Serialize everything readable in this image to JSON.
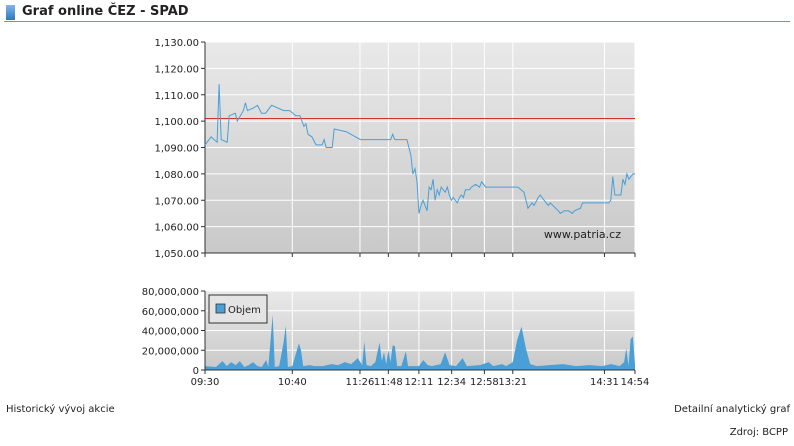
{
  "header": {
    "title": "Graf online ČEZ - SPAD"
  },
  "footer": {
    "history_link": "Historický vývoj akcie",
    "detail_link": "Detailní analytický graf",
    "source": "Zdroj: BCPP"
  },
  "colors": {
    "price_line": "#4a9fd6",
    "reference_line": "#d03030",
    "volume_fill": "#4a9fd6",
    "header_accent": "#2b78c2"
  },
  "chart_data": [
    {
      "type": "line",
      "watermark": "www.patria.cz",
      "y_ticks": [
        "1,050.00",
        "1,060.00",
        "1,070.00",
        "1,080.00",
        "1,090.00",
        "1,100.00",
        "1,110.00",
        "1,120.00",
        "1,130.00"
      ],
      "ylim": [
        1050,
        1130
      ],
      "reference_value": 1101,
      "grid": true,
      "points": [
        [
          0,
          1091
        ],
        [
          3,
          1094
        ],
        [
          6,
          1092
        ],
        [
          7,
          1114
        ],
        [
          8,
          1093
        ],
        [
          11,
          1092
        ],
        [
          12,
          1102
        ],
        [
          15,
          1103
        ],
        [
          16,
          1100
        ],
        [
          19,
          1104
        ],
        [
          20,
          1107
        ],
        [
          21,
          1104
        ],
        [
          24,
          1105
        ],
        [
          26,
          1106
        ],
        [
          28,
          1103
        ],
        [
          30,
          1103
        ],
        [
          33,
          1106
        ],
        [
          39,
          1104
        ],
        [
          42,
          1104
        ],
        [
          45,
          1102
        ],
        [
          47,
          1102
        ],
        [
          49,
          1098
        ],
        [
          50,
          1099
        ],
        [
          51,
          1095
        ],
        [
          53,
          1094
        ],
        [
          55,
          1091
        ],
        [
          58,
          1091
        ],
        [
          59,
          1093
        ],
        [
          60,
          1090
        ],
        [
          63,
          1090
        ],
        [
          64,
          1097
        ],
        [
          70,
          1096
        ],
        [
          77,
          1093
        ],
        [
          92,
          1093
        ],
        [
          93,
          1095
        ],
        [
          94,
          1093
        ],
        [
          100,
          1093
        ],
        [
          102,
          1087
        ],
        [
          103,
          1080
        ],
        [
          104,
          1082
        ],
        [
          105,
          1077
        ],
        [
          106,
          1065
        ],
        [
          107,
          1068
        ],
        [
          108,
          1070
        ],
        [
          110,
          1066
        ],
        [
          111,
          1075
        ],
        [
          112,
          1074
        ],
        [
          113,
          1078
        ],
        [
          114,
          1070
        ],
        [
          115,
          1074
        ],
        [
          116,
          1072
        ],
        [
          117,
          1075
        ],
        [
          119,
          1073
        ],
        [
          120,
          1075
        ],
        [
          121,
          1072
        ],
        [
          122,
          1070
        ],
        [
          123,
          1071
        ],
        [
          125,
          1069
        ],
        [
          126,
          1071
        ],
        [
          127,
          1072
        ],
        [
          128,
          1071
        ],
        [
          129,
          1074
        ],
        [
          131,
          1074
        ],
        [
          132,
          1075
        ],
        [
          134,
          1076
        ],
        [
          136,
          1075
        ],
        [
          137,
          1077
        ],
        [
          139,
          1075
        ],
        [
          155,
          1075
        ],
        [
          158,
          1073
        ],
        [
          159,
          1070
        ],
        [
          160,
          1067
        ],
        [
          162,
          1069
        ],
        [
          163,
          1068
        ],
        [
          165,
          1071
        ],
        [
          166,
          1072
        ],
        [
          169,
          1069
        ],
        [
          170,
          1068
        ],
        [
          171,
          1069
        ],
        [
          175,
          1066
        ],
        [
          176,
          1065
        ],
        [
          178,
          1066
        ],
        [
          180,
          1066
        ],
        [
          182,
          1065
        ],
        [
          183,
          1066
        ],
        [
          186,
          1067
        ],
        [
          187,
          1069
        ],
        [
          200,
          1069
        ],
        [
          201,
          1070
        ],
        [
          202,
          1079
        ],
        [
          203,
          1072
        ],
        [
          206,
          1072
        ],
        [
          207,
          1078
        ],
        [
          208,
          1076
        ],
        [
          209,
          1080
        ],
        [
          210,
          1078
        ],
        [
          212,
          1080
        ],
        [
          213,
          1080
        ]
      ]
    },
    {
      "type": "area",
      "legend": {
        "label": "Objem",
        "position": "top-left"
      },
      "y_ticks": [
        "0",
        "20,000,000",
        "40,000,000",
        "60,000,000",
        "80,000,000"
      ],
      "ylim": [
        0,
        80000000
      ],
      "grid": true,
      "x_tick_labels": [
        {
          "t": 0,
          "label": "09:30"
        },
        {
          "t": 40,
          "label": "10:40"
        },
        {
          "t": 71,
          "label": "11:26"
        },
        {
          "t": 84,
          "label": "11:48"
        },
        {
          "t": 98,
          "label": "12:11"
        },
        {
          "t": 113,
          "label": "12:34"
        },
        {
          "t": 128,
          "label": "12:58"
        },
        {
          "t": 141,
          "label": "13:21"
        },
        {
          "t": 183,
          "label": "14:31"
        },
        {
          "t": 197,
          "label": "14:54"
        }
      ],
      "points": [
        [
          0,
          4000000
        ],
        [
          5,
          3000000
        ],
        [
          8,
          9000000
        ],
        [
          10,
          4000000
        ],
        [
          12,
          8000000
        ],
        [
          14,
          5000000
        ],
        [
          16,
          9000000
        ],
        [
          18,
          3000000
        ],
        [
          20,
          5000000
        ],
        [
          22,
          8000000
        ],
        [
          24,
          4000000
        ],
        [
          26,
          3000000
        ],
        [
          28,
          10000000
        ],
        [
          29,
          3000000
        ],
        [
          31,
          56000000
        ],
        [
          32,
          3000000
        ],
        [
          34,
          4000000
        ],
        [
          36,
          28000000
        ],
        [
          37,
          45000000
        ],
        [
          38,
          3000000
        ],
        [
          40,
          4000000
        ],
        [
          43,
          27000000
        ],
        [
          44,
          20000000
        ],
        [
          45,
          4000000
        ],
        [
          48,
          5000000
        ],
        [
          50,
          4000000
        ],
        [
          54,
          4000000
        ],
        [
          58,
          6000000
        ],
        [
          61,
          5000000
        ],
        [
          64,
          8000000
        ],
        [
          67,
          6000000
        ],
        [
          70,
          12000000
        ],
        [
          72,
          5000000
        ],
        [
          73,
          29000000
        ],
        [
          74,
          5000000
        ],
        [
          76,
          4000000
        ],
        [
          78,
          8000000
        ],
        [
          80,
          28000000
        ],
        [
          81,
          9000000
        ],
        [
          82,
          18000000
        ],
        [
          83,
          6000000
        ],
        [
          84,
          20000000
        ],
        [
          85,
          8000000
        ],
        [
          86,
          25000000
        ],
        [
          87,
          24000000
        ],
        [
          88,
          4000000
        ],
        [
          90,
          4000000
        ],
        [
          92,
          19000000
        ],
        [
          93,
          4000000
        ],
        [
          95,
          4000000
        ],
        [
          98,
          4000000
        ],
        [
          100,
          10000000
        ],
        [
          102,
          5000000
        ],
        [
          104,
          4000000
        ],
        [
          108,
          6000000
        ],
        [
          110,
          18000000
        ],
        [
          112,
          5000000
        ],
        [
          115,
          4000000
        ],
        [
          118,
          12000000
        ],
        [
          120,
          4000000
        ],
        [
          126,
          5000000
        ],
        [
          130,
          8000000
        ],
        [
          132,
          4000000
        ],
        [
          136,
          6000000
        ],
        [
          138,
          4000000
        ],
        [
          141,
          8000000
        ],
        [
          143,
          30000000
        ],
        [
          145,
          44000000
        ],
        [
          147,
          22000000
        ],
        [
          149,
          6000000
        ],
        [
          152,
          4000000
        ],
        [
          158,
          5000000
        ],
        [
          164,
          6000000
        ],
        [
          170,
          4000000
        ],
        [
          176,
          5000000
        ],
        [
          182,
          4000000
        ],
        [
          186,
          6000000
        ],
        [
          190,
          4000000
        ],
        [
          192,
          8000000
        ],
        [
          193,
          22000000
        ],
        [
          194,
          4000000
        ],
        [
          195,
          31000000
        ],
        [
          196,
          34000000
        ],
        [
          197,
          6000000
        ]
      ]
    }
  ]
}
